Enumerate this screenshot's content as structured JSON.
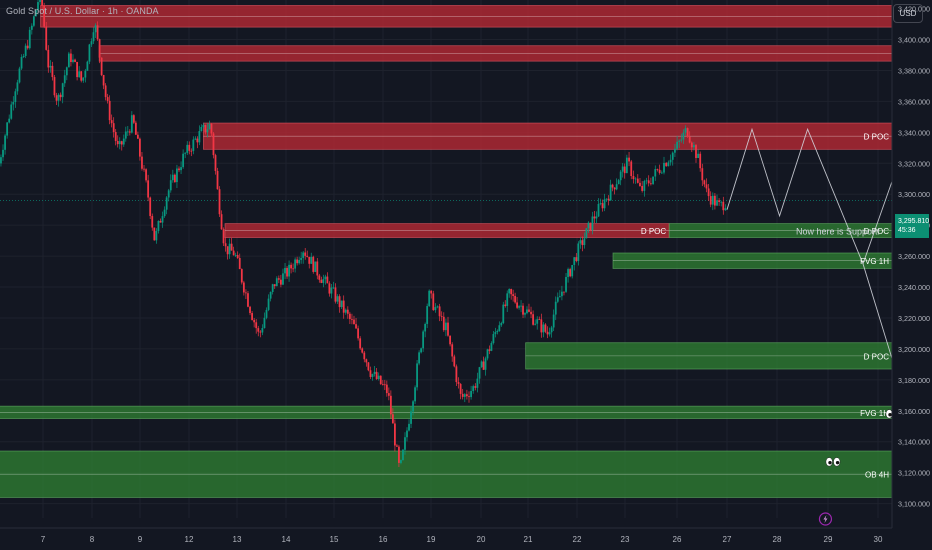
{
  "header": {
    "symbol": "Gold Spot / U.S. Dollar · 1h · OANDA"
  },
  "currency_button": "USD",
  "current_price": {
    "value": "3,295.810",
    "countdown": "45:36"
  },
  "colors": {
    "background": "#131722",
    "up": "#089981",
    "down": "#f23645",
    "resistance_zone": "#b22833",
    "support_zone": "#2e7d32",
    "projection": "#d1d4dc"
  },
  "chart_data": {
    "type": "candlestick",
    "instrument": "Gold Spot / U.S. Dollar",
    "timeframe": "1h",
    "source": "OANDA",
    "ylim": [
      3092,
      3432
    ],
    "y_ticks": [
      3100,
      3120,
      3140,
      3160,
      3180,
      3200,
      3220,
      3240,
      3260,
      3280,
      3300,
      3320,
      3340,
      3360,
      3380,
      3400,
      3420
    ],
    "y_tick_labels": [
      "3,100.000",
      "3,120.000",
      "3,140.000",
      "3,160.000",
      "3,180.000",
      "3,200.000",
      "3,220.000",
      "3,240.000",
      "3,260.000",
      "3,280.000",
      "3,300.000",
      "3,320.000",
      "3,340.000",
      "3,360.000",
      "3,380.000",
      "3,400.000",
      "3,420.000"
    ],
    "x_tick_labels": [
      "7",
      "8",
      "9",
      "12",
      "13",
      "14",
      "15",
      "16",
      "19",
      "20",
      "21",
      "22",
      "23",
      "26",
      "27",
      "28",
      "29",
      "30"
    ],
    "price_path": [
      {
        "day": 6.1,
        "price": 3320
      },
      {
        "day": 6.45,
        "price": 3372
      },
      {
        "day": 6.75,
        "price": 3405
      },
      {
        "day": 6.95,
        "price": 3432
      },
      {
        "day": 7.1,
        "price": 3385
      },
      {
        "day": 7.3,
        "price": 3360
      },
      {
        "day": 7.55,
        "price": 3390
      },
      {
        "day": 7.8,
        "price": 3372
      },
      {
        "day": 8.05,
        "price": 3412
      },
      {
        "day": 8.3,
        "price": 3360
      },
      {
        "day": 8.55,
        "price": 3328
      },
      {
        "day": 8.85,
        "price": 3348
      },
      {
        "day": 9.15,
        "price": 3302
      },
      {
        "day": 9.3,
        "price": 3270
      },
      {
        "day": 9.55,
        "price": 3300
      },
      {
        "day": 9.9,
        "price": 3325
      },
      {
        "day": 10.25,
        "price": 3340
      },
      {
        "day": 10.45,
        "price": 3345
      },
      {
        "day": 10.6,
        "price": 3300
      },
      {
        "day": 10.75,
        "price": 3265
      },
      {
        "day": 10.95,
        "price": 3262
      },
      {
        "day": 11.25,
        "price": 3228
      },
      {
        "day": 11.45,
        "price": 3208
      },
      {
        "day": 11.75,
        "price": 3242
      },
      {
        "day": 12.05,
        "price": 3250
      },
      {
        "day": 12.35,
        "price": 3265
      },
      {
        "day": 12.65,
        "price": 3250
      },
      {
        "day": 13.0,
        "price": 3235
      },
      {
        "day": 13.4,
        "price": 3215
      },
      {
        "day": 13.75,
        "price": 3185
      },
      {
        "day": 14.1,
        "price": 3172
      },
      {
        "day": 14.35,
        "price": 3120
      },
      {
        "day": 14.65,
        "price": 3175
      },
      {
        "day": 14.95,
        "price": 3235
      },
      {
        "day": 15.3,
        "price": 3213
      },
      {
        "day": 15.6,
        "price": 3168
      },
      {
        "day": 15.85,
        "price": 3175
      },
      {
        "day": 16.3,
        "price": 3210
      },
      {
        "day": 16.6,
        "price": 3235
      },
      {
        "day": 16.95,
        "price": 3225
      },
      {
        "day": 17.4,
        "price": 3210
      },
      {
        "day": 17.6,
        "price": 3230
      },
      {
        "day": 18.0,
        "price": 3262
      },
      {
        "day": 18.35,
        "price": 3285
      },
      {
        "day": 18.75,
        "price": 3305
      },
      {
        "day": 19.05,
        "price": 3320
      },
      {
        "day": 19.3,
        "price": 3302
      },
      {
        "day": 19.55,
        "price": 3312
      },
      {
        "day": 19.95,
        "price": 3328
      },
      {
        "day": 20.2,
        "price": 3342
      },
      {
        "day": 20.4,
        "price": 3325
      },
      {
        "day": 20.6,
        "price": 3300
      },
      {
        "day": 20.85,
        "price": 3292
      },
      {
        "day": 21.0,
        "price": 3296
      }
    ],
    "zones": [
      {
        "type": "resistance",
        "from_day": 6.95,
        "to_day": 30.3,
        "low": 3408,
        "high": 3422,
        "label": ""
      },
      {
        "type": "resistance",
        "from_day": 8.15,
        "to_day": 30.3,
        "low": 3386,
        "high": 3396,
        "label": ""
      },
      {
        "type": "resistance",
        "from_day": 10.3,
        "to_day": 30.3,
        "low": 3329,
        "high": 3346,
        "label": "D POC"
      },
      {
        "type": "resistance",
        "from_day": 10.75,
        "to_day": 19.85,
        "low": 3272,
        "high": 3281,
        "label": "D POC"
      },
      {
        "type": "support",
        "from_day": 19.85,
        "to_day": 30.3,
        "low": 3272,
        "high": 3281,
        "label": "D POC"
      },
      {
        "type": "support",
        "from_day": 18.75,
        "to_day": 30.3,
        "low": 3252,
        "high": 3262,
        "label": "FVG 1H"
      },
      {
        "type": "support",
        "from_day": 16.95,
        "to_day": 30.3,
        "low": 3187,
        "high": 3204,
        "label": "D POC"
      },
      {
        "type": "support",
        "from_day": 6.1,
        "to_day": 30.3,
        "low": 3155,
        "high": 3163,
        "label": "FVG 1H"
      },
      {
        "type": "support",
        "from_day": 6.1,
        "to_day": 30.3,
        "low": 3104,
        "high": 3134,
        "label": "OB 4H"
      }
    ],
    "annotation": {
      "text": "Now here is Support!",
      "day": 23.2,
      "price": 3276
    },
    "projections": [
      {
        "name": "path-1",
        "points": [
          [
            21.0,
            3290
          ],
          [
            21.5,
            3342
          ],
          [
            22.05,
            3286
          ],
          [
            22.6,
            3342
          ],
          [
            23.7,
            3255
          ],
          [
            24.6,
            3160
          ],
          [
            25.55,
            3386
          ]
        ]
      },
      {
        "name": "path-2",
        "points": [
          [
            23.7,
            3255
          ],
          [
            25.15,
            3388
          ]
        ]
      },
      {
        "name": "path-3",
        "points": [
          [
            24.6,
            3160
          ],
          [
            26.2,
            3377
          ]
        ]
      }
    ],
    "eye_markers": [
      {
        "day": 25.95,
        "price": 3414
      },
      {
        "day": 26.35,
        "price": 3390
      },
      {
        "day": 26.0,
        "price": 3200
      },
      {
        "day": 24.3,
        "price": 3158
      },
      {
        "day": 23.1,
        "price": 3127
      }
    ],
    "event_markers": [
      {
        "icon": "lightning-icon",
        "day": 22.95
      },
      {
        "icon": "flag-icon",
        "day": 25.7
      },
      {
        "icon": "flag-icon",
        "day": 26.95
      }
    ]
  }
}
